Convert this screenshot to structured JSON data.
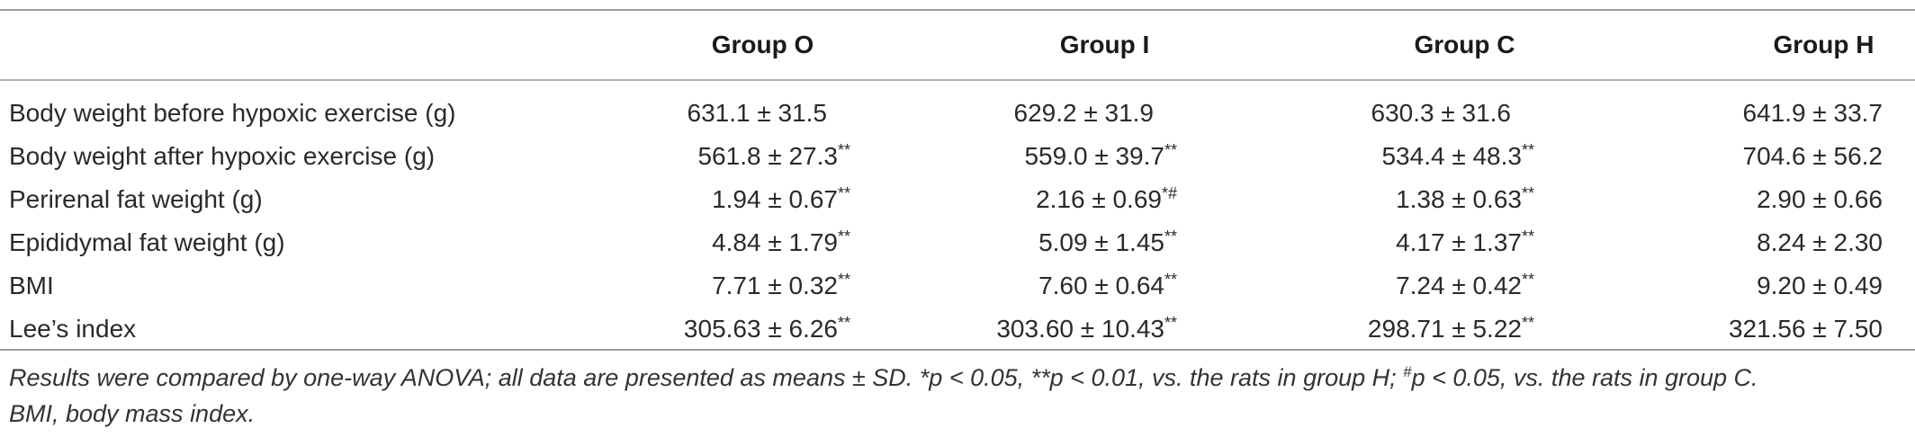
{
  "table": {
    "headers": [
      "",
      "Group O",
      "Group I",
      "Group C",
      "Group H"
    ],
    "rows": [
      {
        "label": "Body weight before hypoxic exercise (g)",
        "cells": [
          {
            "value": "631.1 ± 31.5",
            "mark": ""
          },
          {
            "value": "629.2 ± 31.9",
            "mark": ""
          },
          {
            "value": "630.3 ± 31.6",
            "mark": ""
          },
          {
            "value": "641.9 ± 33.7",
            "mark": ""
          }
        ]
      },
      {
        "label": "Body weight after hypoxic exercise (g)",
        "cells": [
          {
            "value": "561.8 ± 27.3",
            "mark": "**"
          },
          {
            "value": "559.0 ± 39.7",
            "mark": "**"
          },
          {
            "value": "534.4 ± 48.3",
            "mark": "**"
          },
          {
            "value": "704.6 ± 56.2",
            "mark": ""
          }
        ]
      },
      {
        "label": "Perirenal fat weight (g)",
        "cells": [
          {
            "value": "1.94 ± 0.67",
            "mark": "**"
          },
          {
            "value": "2.16 ± 0.69",
            "mark": "*#"
          },
          {
            "value": "1.38 ± 0.63",
            "mark": "**"
          },
          {
            "value": "2.90 ± 0.66",
            "mark": ""
          }
        ]
      },
      {
        "label": "Epididymal fat weight (g)",
        "cells": [
          {
            "value": "4.84 ± 1.79",
            "mark": "**"
          },
          {
            "value": "5.09 ± 1.45",
            "mark": "**"
          },
          {
            "value": "4.17 ± 1.37",
            "mark": "**"
          },
          {
            "value": "8.24 ± 2.30",
            "mark": ""
          }
        ]
      },
      {
        "label": "BMI",
        "cells": [
          {
            "value": "7.71 ± 0.32",
            "mark": "**"
          },
          {
            "value": "7.60 ± 0.64",
            "mark": "**"
          },
          {
            "value": "7.24 ± 0.42",
            "mark": "**"
          },
          {
            "value": "9.20 ± 0.49",
            "mark": ""
          }
        ]
      },
      {
        "label": "Lee’s index",
        "cells": [
          {
            "value": "305.63 ± 6.26",
            "mark": "**"
          },
          {
            "value": "303.60 ± 10.43",
            "mark": "**"
          },
          {
            "value": "298.71 ± 5.22",
            "mark": "**"
          },
          {
            "value": "321.56 ± 7.50",
            "mark": ""
          }
        ]
      }
    ]
  },
  "footnote": {
    "line1_a": "Results were compared by one-way ANOVA; all data are presented as means ± SD. *p < 0.05, **p < 0.01, vs. the rats in group H; ",
    "line1_sup": "#",
    "line1_b": "p < 0.05, vs. the rats in group C.",
    "line2": "BMI, body mass index."
  }
}
